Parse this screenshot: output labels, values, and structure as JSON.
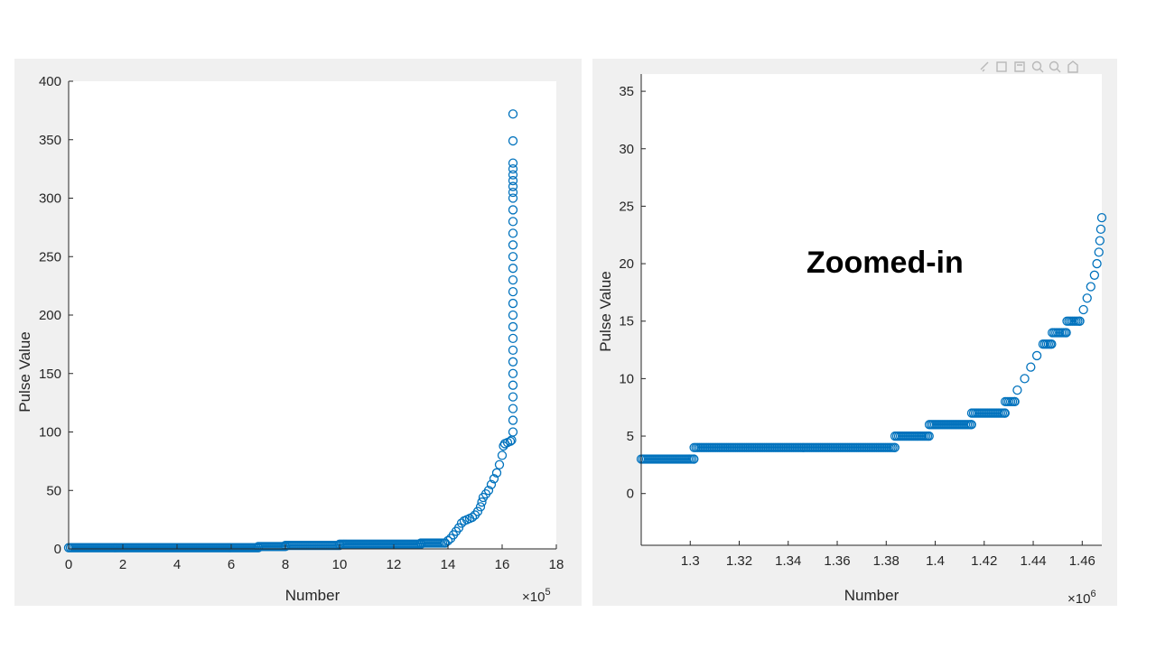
{
  "chart_data": [
    {
      "type": "scatter",
      "title": "",
      "xlabel": "Number",
      "ylabel": "Pulse Value",
      "x_exponent": "×10",
      "x_exponent_power": "5",
      "xlim": [
        0,
        18
      ],
      "ylim": [
        0,
        400
      ],
      "xticks": [
        "0",
        "2",
        "4",
        "6",
        "8",
        "10",
        "12",
        "14",
        "16",
        "18"
      ],
      "yticks": [
        "0",
        "50",
        "100",
        "150",
        "200",
        "250",
        "300",
        "350",
        "400"
      ],
      "grid": false,
      "marker_color": "#0072BD",
      "series": [
        {
          "values": [
            [
              0,
              1
            ],
            [
              7,
              1
            ],
            [
              7,
              2
            ],
            [
              8,
              2
            ],
            [
              8,
              3
            ],
            [
              10,
              3
            ],
            [
              10,
              4
            ],
            [
              13,
              4
            ],
            [
              13,
              5
            ],
            [
              13.9,
              5
            ],
            [
              14.0,
              7
            ],
            [
              14.1,
              9
            ],
            [
              14.2,
              12
            ],
            [
              14.3,
              15
            ],
            [
              14.4,
              18
            ],
            [
              14.5,
              22
            ],
            [
              14.6,
              24
            ],
            [
              14.7,
              25
            ],
            [
              14.8,
              26
            ],
            [
              14.9,
              27
            ],
            [
              15.0,
              29
            ],
            [
              15.1,
              32
            ],
            [
              15.2,
              36
            ],
            [
              15.25,
              40
            ],
            [
              15.3,
              44
            ],
            [
              15.4,
              47
            ],
            [
              15.5,
              50
            ],
            [
              15.6,
              55
            ],
            [
              15.7,
              60
            ],
            [
              15.8,
              65
            ],
            [
              15.9,
              72
            ],
            [
              16.0,
              80
            ],
            [
              16.05,
              88
            ],
            [
              16.1,
              90
            ],
            [
              16.2,
              91
            ],
            [
              16.3,
              92
            ],
            [
              16.35,
              93
            ],
            [
              16.4,
              100
            ],
            [
              16.4,
              110
            ],
            [
              16.4,
              120
            ],
            [
              16.4,
              130
            ],
            [
              16.4,
              140
            ],
            [
              16.4,
              150
            ],
            [
              16.4,
              160
            ],
            [
              16.4,
              170
            ],
            [
              16.4,
              180
            ],
            [
              16.4,
              190
            ],
            [
              16.4,
              200
            ],
            [
              16.4,
              210
            ],
            [
              16.4,
              220
            ],
            [
              16.4,
              230
            ],
            [
              16.4,
              240
            ],
            [
              16.4,
              250
            ],
            [
              16.4,
              260
            ],
            [
              16.4,
              270
            ],
            [
              16.4,
              280
            ],
            [
              16.4,
              290
            ],
            [
              16.4,
              300
            ],
            [
              16.4,
              305
            ],
            [
              16.4,
              310
            ],
            [
              16.4,
              315
            ],
            [
              16.4,
              320
            ],
            [
              16.4,
              325
            ],
            [
              16.4,
              330
            ],
            [
              16.4,
              349
            ],
            [
              16.4,
              372
            ]
          ]
        }
      ]
    },
    {
      "type": "scatter",
      "title": "",
      "xlabel": "Number",
      "ylabel": "Pulse Value",
      "x_exponent": "×10",
      "x_exponent_power": "6",
      "xlim": [
        1.28,
        1.468
      ],
      "ylim": [
        -4.5,
        36.5
      ],
      "xticks": [
        "1.3",
        "1.32",
        "1.34",
        "1.36",
        "1.38",
        "1.4",
        "1.42",
        "1.44",
        "1.46"
      ],
      "yticks": [
        "0",
        "5",
        "10",
        "15",
        "20",
        "25",
        "30",
        "35"
      ],
      "grid": false,
      "marker_color": "#0072BD",
      "annotation": "Zoomed-in",
      "series": [
        {
          "values": [
            [
              1.28,
              3
            ],
            [
              1.3015,
              3
            ],
            [
              1.3016,
              4
            ],
            [
              1.3835,
              4
            ],
            [
              1.3836,
              5
            ],
            [
              1.3975,
              5
            ],
            [
              1.3976,
              6
            ],
            [
              1.4148,
              6
            ],
            [
              1.4149,
              7
            ],
            [
              1.4285,
              7
            ],
            [
              1.4286,
              8
            ],
            [
              1.4325,
              8
            ],
            [
              1.4335,
              9
            ],
            [
              1.4365,
              10
            ],
            [
              1.439,
              11
            ],
            [
              1.4415,
              12
            ],
            [
              1.444,
              13
            ],
            [
              1.4475,
              13
            ],
            [
              1.4478,
              14
            ],
            [
              1.4535,
              14
            ],
            [
              1.4538,
              15
            ],
            [
              1.459,
              15
            ],
            [
              1.4605,
              16
            ],
            [
              1.462,
              17
            ],
            [
              1.4635,
              18
            ],
            [
              1.465,
              19
            ],
            [
              1.466,
              20
            ],
            [
              1.4668,
              21
            ],
            [
              1.4672,
              22
            ],
            [
              1.4676,
              23
            ],
            [
              1.468,
              24
            ]
          ]
        }
      ]
    }
  ]
}
